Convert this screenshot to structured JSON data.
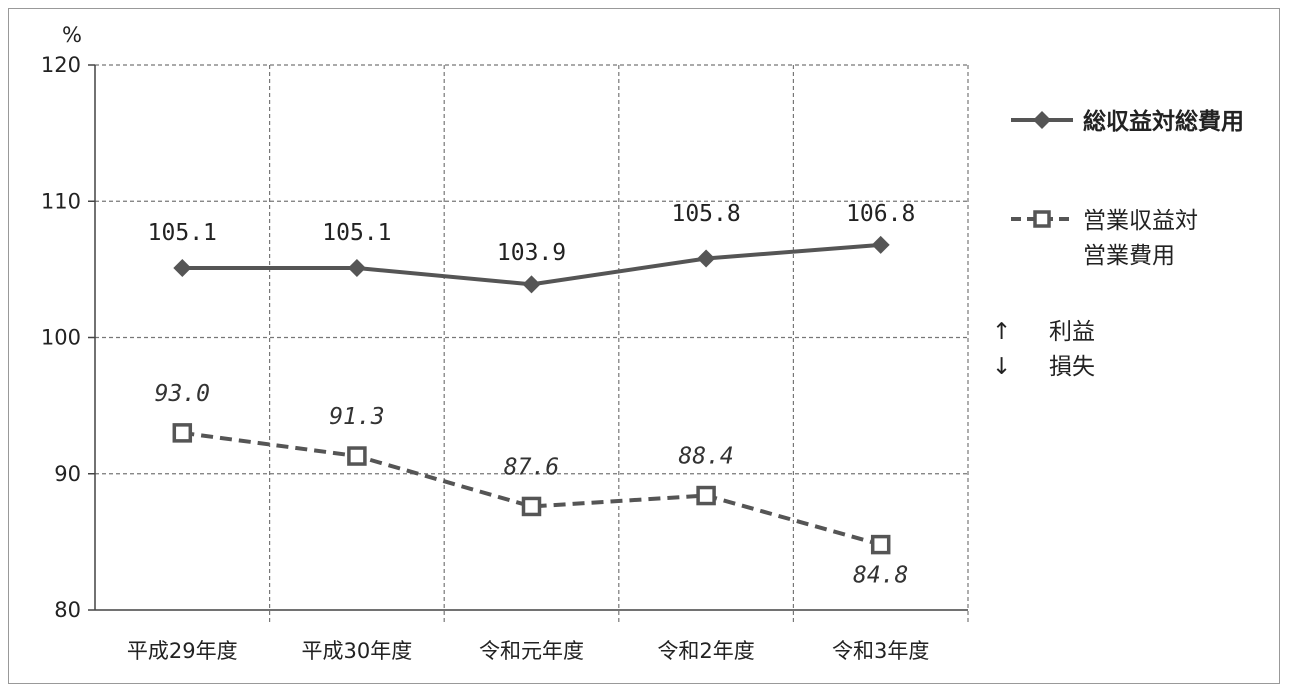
{
  "chart_data": {
    "type": "line",
    "categories": [
      "平成29年度",
      "平成30年度",
      "令和元年度",
      "令和2年度",
      "令和3年度"
    ],
    "series": [
      {
        "name": "総収益対総費用",
        "values": [
          105.1,
          105.1,
          103.9,
          105.8,
          106.8
        ],
        "labels": [
          "105.1",
          "105.1",
          "103.9",
          "105.8",
          "106.8"
        ],
        "color": "#555555",
        "line_style": "solid",
        "marker": "diamond"
      },
      {
        "name": "営業収益対営業費用",
        "name_lines": [
          "営業収益対",
          "営業費用"
        ],
        "values": [
          93.0,
          91.3,
          87.6,
          88.4,
          84.8
        ],
        "labels": [
          "93.0",
          "91.3",
          "87.6",
          "88.4",
          "84.8"
        ],
        "color": "#555555",
        "line_style": "dashed",
        "marker": "square"
      }
    ],
    "ylabel": "%",
    "ylim": [
      80,
      120
    ],
    "yticks": [
      "80",
      "90",
      "100",
      "110",
      "120"
    ],
    "grid": true,
    "legend_position": "right"
  },
  "annotation": {
    "up_arrow": "↑",
    "down_arrow": "↓",
    "profit": "利益",
    "loss": "損失"
  }
}
